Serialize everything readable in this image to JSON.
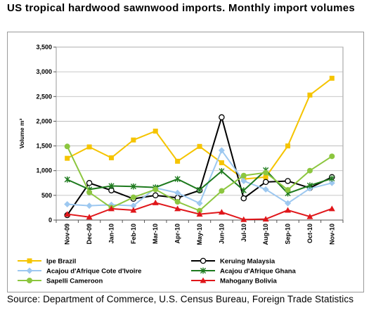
{
  "header": {
    "title": "US tropical hardwood sawnwood imports. Monthly import volumes"
  },
  "footer": {
    "source": "Source: Department of Commerce, U.S. Census Bureau, Foreign Trade Statistics"
  },
  "chart_data": {
    "type": "line",
    "title": "US tropical hardwood sawnwood imports. Monthly import volumes",
    "xlabel": "",
    "ylabel": "Volume m³",
    "ylim": [
      0,
      3500
    ],
    "yticks": [
      0,
      500,
      1000,
      1500,
      2000,
      2500,
      3000,
      3500
    ],
    "ytick_labels": [
      "0",
      "500",
      "1,000",
      "1,500",
      "2,000",
      "2,500",
      "3,000",
      "3,500"
    ],
    "categories": [
      "Nov-09",
      "Dec-09",
      "Jan-10",
      "Feb-10",
      "Mar-10",
      "Apr-10",
      "May-10",
      "Jun-10",
      "Jul-10",
      "Aug-10",
      "Sep-10",
      "Oct-10",
      "Nov-10"
    ],
    "grid": true,
    "legend_position": "bottom",
    "series": [
      {
        "name": "Ipe Brazil",
        "color": "#f5c400",
        "marker": "square",
        "values": [
          1250,
          1480,
          1260,
          1620,
          1800,
          1190,
          1490,
          1160,
          830,
          870,
          1500,
          2530,
          2870
        ]
      },
      {
        "name": "Keruing Malaysia",
        "color": "#000000",
        "marker": "circle-open",
        "values": [
          100,
          750,
          600,
          430,
          500,
          450,
          600,
          2080,
          440,
          770,
          790,
          650,
          870
        ]
      },
      {
        "name": "Acajou d'Afrique Cote d'Ivoire",
        "color": "#9dc8f0",
        "marker": "diamond",
        "values": [
          320,
          290,
          310,
          290,
          650,
          550,
          340,
          1410,
          790,
          620,
          340,
          640,
          750
        ]
      },
      {
        "name": "Acajou d'Afrique Ghana",
        "color": "#1e7a1e",
        "marker": "star",
        "values": [
          820,
          620,
          690,
          680,
          660,
          830,
          610,
          990,
          600,
          1010,
          540,
          700,
          840
        ]
      },
      {
        "name": "Sapelli Cameroon",
        "color": "#8cc63f",
        "marker": "circle",
        "values": [
          1490,
          560,
          250,
          460,
          620,
          370,
          190,
          590,
          900,
          960,
          610,
          1000,
          1290
        ]
      },
      {
        "name": "Mahogany Bolivia",
        "color": "#e0161a",
        "marker": "triangle",
        "values": [
          120,
          60,
          230,
          200,
          350,
          230,
          120,
          160,
          10,
          20,
          200,
          70,
          230
        ]
      }
    ]
  }
}
